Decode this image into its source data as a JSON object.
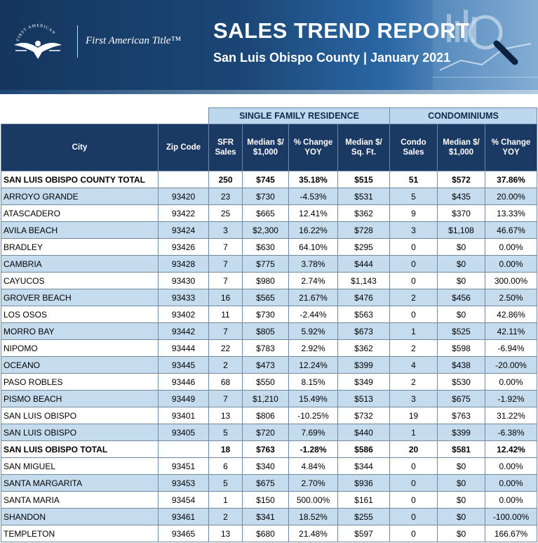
{
  "header": {
    "logo_text": "First American Title™",
    "logo_ring_text": "FIRST AMERICAN",
    "title": "SALES TREND REPORT",
    "subtitle": "San Luis Obispo County | January 2021"
  },
  "colors": {
    "header_dark": "#1b3a63",
    "group_header": "#bdd7ee",
    "row_alt": "#c5dcef"
  },
  "table": {
    "group_headers": {
      "sfr": "SINGLE FAMILY RESIDENCE",
      "condo": "CONDOMINIUMS"
    },
    "columns": {
      "city": "City",
      "zip": "Zip Code",
      "sfr_sales": [
        "SFR",
        "Sales"
      ],
      "sfr_median": [
        "Median $/",
        "$1,000"
      ],
      "sfr_change": [
        "% Change",
        "YOY"
      ],
      "sfr_sqft": [
        "Median $/",
        "Sq. Ft."
      ],
      "condo_sales": [
        "Condo",
        "Sales"
      ],
      "condo_median": [
        "Median $/",
        "$1,000"
      ],
      "condo_change": [
        "% Change",
        "YOY"
      ]
    },
    "rows": [
      {
        "city": "SAN LUIS OBISPO COUNTY TOTAL",
        "zip": "",
        "sfr_sales": "250",
        "sfr_median": "$745",
        "sfr_change": "35.18%",
        "sfr_sqft": "$515",
        "condo_sales": "51",
        "condo_median": "$572",
        "condo_change": "37.86%",
        "total": true
      },
      {
        "city": "ARROYO GRANDE",
        "zip": "93420",
        "sfr_sales": "23",
        "sfr_median": "$730",
        "sfr_change": "-4.53%",
        "sfr_sqft": "$531",
        "condo_sales": "5",
        "condo_median": "$435",
        "condo_change": "20.00%"
      },
      {
        "city": "ATASCADERO",
        "zip": "93422",
        "sfr_sales": "25",
        "sfr_median": "$665",
        "sfr_change": "12.41%",
        "sfr_sqft": "$362",
        "condo_sales": "9",
        "condo_median": "$370",
        "condo_change": "13.33%"
      },
      {
        "city": "AVILA BEACH",
        "zip": "93424",
        "sfr_sales": "3",
        "sfr_median": "$2,300",
        "sfr_change": "16.22%",
        "sfr_sqft": "$728",
        "condo_sales": "3",
        "condo_median": "$1,108",
        "condo_change": "46.67%"
      },
      {
        "city": "BRADLEY",
        "zip": "93426",
        "sfr_sales": "7",
        "sfr_median": "$630",
        "sfr_change": "64.10%",
        "sfr_sqft": "$295",
        "condo_sales": "0",
        "condo_median": "$0",
        "condo_change": "0.00%"
      },
      {
        "city": "CAMBRIA",
        "zip": "93428",
        "sfr_sales": "7",
        "sfr_median": "$775",
        "sfr_change": "3.78%",
        "sfr_sqft": "$444",
        "condo_sales": "0",
        "condo_median": "$0",
        "condo_change": "0.00%"
      },
      {
        "city": "CAYUCOS",
        "zip": "93430",
        "sfr_sales": "7",
        "sfr_median": "$980",
        "sfr_change": "2.74%",
        "sfr_sqft": "$1,143",
        "condo_sales": "0",
        "condo_median": "$0",
        "condo_change": "300.00%"
      },
      {
        "city": "GROVER BEACH",
        "zip": "93433",
        "sfr_sales": "16",
        "sfr_median": "$565",
        "sfr_change": "21.67%",
        "sfr_sqft": "$476",
        "condo_sales": "2",
        "condo_median": "$456",
        "condo_change": "2.50%"
      },
      {
        "city": "LOS OSOS",
        "zip": "93402",
        "sfr_sales": "11",
        "sfr_median": "$730",
        "sfr_change": "-2.44%",
        "sfr_sqft": "$563",
        "condo_sales": "0",
        "condo_median": "$0",
        "condo_change": "42.86%"
      },
      {
        "city": "MORRO BAY",
        "zip": "93442",
        "sfr_sales": "7",
        "sfr_median": "$805",
        "sfr_change": "5.92%",
        "sfr_sqft": "$673",
        "condo_sales": "1",
        "condo_median": "$525",
        "condo_change": "42.11%"
      },
      {
        "city": "NIPOMO",
        "zip": "93444",
        "sfr_sales": "22",
        "sfr_median": "$783",
        "sfr_change": "2.92%",
        "sfr_sqft": "$362",
        "condo_sales": "2",
        "condo_median": "$598",
        "condo_change": "-6.94%"
      },
      {
        "city": "OCEANO",
        "zip": "93445",
        "sfr_sales": "2",
        "sfr_median": "$473",
        "sfr_change": "12.24%",
        "sfr_sqft": "$399",
        "condo_sales": "4",
        "condo_median": "$438",
        "condo_change": "-20.00%"
      },
      {
        "city": "PASO ROBLES",
        "zip": "93446",
        "sfr_sales": "68",
        "sfr_median": "$550",
        "sfr_change": "8.15%",
        "sfr_sqft": "$349",
        "condo_sales": "2",
        "condo_median": "$530",
        "condo_change": "0.00%"
      },
      {
        "city": "PISMO BEACH",
        "zip": "93449",
        "sfr_sales": "7",
        "sfr_median": "$1,210",
        "sfr_change": "15.49%",
        "sfr_sqft": "$513",
        "condo_sales": "3",
        "condo_median": "$675",
        "condo_change": "-1.92%"
      },
      {
        "city": "SAN LUIS OBISPO",
        "zip": "93401",
        "sfr_sales": "13",
        "sfr_median": "$806",
        "sfr_change": "-10.25%",
        "sfr_sqft": "$732",
        "condo_sales": "19",
        "condo_median": "$763",
        "condo_change": "31.22%"
      },
      {
        "city": "SAN LUIS OBISPO",
        "zip": "93405",
        "sfr_sales": "5",
        "sfr_median": "$720",
        "sfr_change": "7.69%",
        "sfr_sqft": "$440",
        "condo_sales": "1",
        "condo_median": "$399",
        "condo_change": "-6.38%"
      },
      {
        "city": "SAN LUIS OBISPO TOTAL",
        "zip": "",
        "sfr_sales": "18",
        "sfr_median": "$763",
        "sfr_change": "-1.28%",
        "sfr_sqft": "$586",
        "condo_sales": "20",
        "condo_median": "$581",
        "condo_change": "12.42%",
        "total": true
      },
      {
        "city": "SAN MIGUEL",
        "zip": "93451",
        "sfr_sales": "6",
        "sfr_median": "$340",
        "sfr_change": "4.84%",
        "sfr_sqft": "$344",
        "condo_sales": "0",
        "condo_median": "$0",
        "condo_change": "0.00%"
      },
      {
        "city": "SANTA MARGARITA",
        "zip": "93453",
        "sfr_sales": "5",
        "sfr_median": "$675",
        "sfr_change": "2.70%",
        "sfr_sqft": "$936",
        "condo_sales": "0",
        "condo_median": "$0",
        "condo_change": "0.00%"
      },
      {
        "city": "SANTA MARIA",
        "zip": "93454",
        "sfr_sales": "1",
        "sfr_median": "$150",
        "sfr_change": "500.00%",
        "sfr_sqft": "$161",
        "condo_sales": "0",
        "condo_median": "$0",
        "condo_change": "0.00%"
      },
      {
        "city": "SHANDON",
        "zip": "93461",
        "sfr_sales": "2",
        "sfr_median": "$341",
        "sfr_change": "18.52%",
        "sfr_sqft": "$255",
        "condo_sales": "0",
        "condo_median": "$0",
        "condo_change": "-100.00%"
      },
      {
        "city": "TEMPLETON",
        "zip": "93465",
        "sfr_sales": "13",
        "sfr_median": "$680",
        "sfr_change": "21.48%",
        "sfr_sqft": "$597",
        "condo_sales": "0",
        "condo_median": "$0",
        "condo_change": "166.67%"
      }
    ]
  }
}
